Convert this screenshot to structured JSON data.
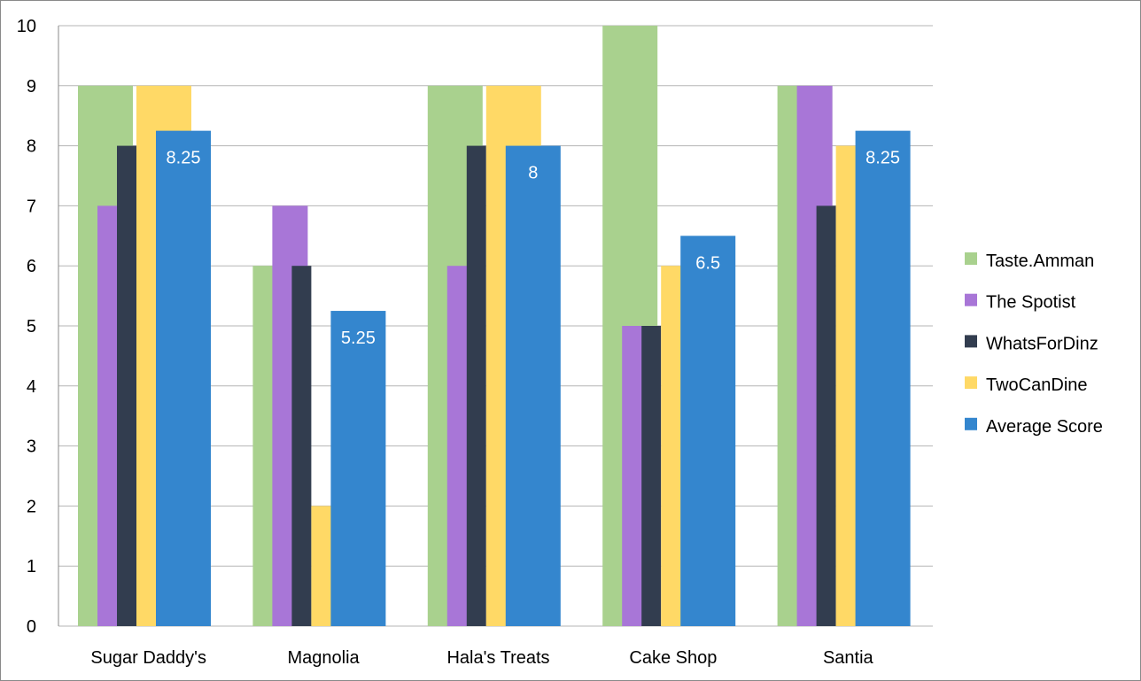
{
  "chart_data": {
    "type": "bar",
    "title": "",
    "xlabel": "",
    "ylabel": "",
    "ylim": [
      0,
      10
    ],
    "yticks": [
      0,
      1,
      2,
      3,
      4,
      5,
      6,
      7,
      8,
      9,
      10
    ],
    "grid": true,
    "legend_position": "right",
    "categories": [
      "Sugar Daddy's",
      "Magnolia",
      "Hala's Treats",
      "Cake Shop",
      "Santia"
    ],
    "series": [
      {
        "name": "Taste.Amman",
        "color": "#a9d18e",
        "values": [
          9,
          6,
          9,
          10,
          9
        ]
      },
      {
        "name": "The Spotist",
        "color": "#a876d7",
        "values": [
          7,
          7,
          6,
          5,
          9
        ]
      },
      {
        "name": "WhatsForDinz",
        "color": "#323d4f",
        "values": [
          8,
          6,
          8,
          5,
          7
        ]
      },
      {
        "name": "TwoCanDine",
        "color": "#ffd966",
        "values": [
          9,
          2,
          9,
          6,
          8
        ]
      },
      {
        "name": "Average Score",
        "color": "#3486ce",
        "values": [
          8.25,
          5.25,
          8,
          6.5,
          8.25
        ],
        "data_labels": [
          "8.25",
          "5.25",
          "8",
          "6.5",
          "8.25"
        ]
      }
    ]
  }
}
